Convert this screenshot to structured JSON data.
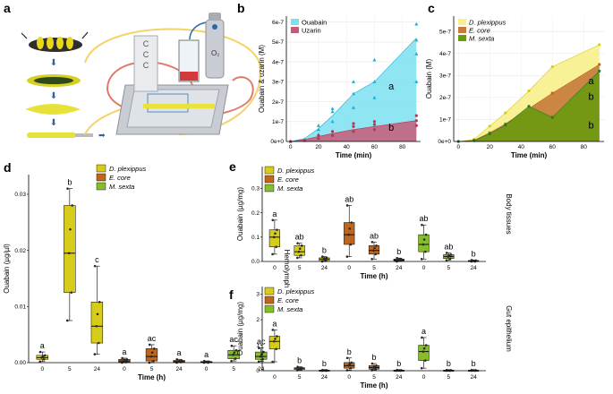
{
  "panels": {
    "a": "a",
    "b": "b",
    "c": "c",
    "d": "d",
    "e": "e",
    "f": "f"
  },
  "colors": {
    "dplex": "#d8cc1a",
    "ecore": "#c0661c",
    "msexta": "#86bd2b",
    "ouabain": "#7de0f0",
    "ouabain_pt": "#1ab0d8",
    "uzarin": "#c75a78",
    "uzarin_pt": "#b13a52",
    "yellow_area": "#f8f08a",
    "orange_area": "#c77a3a",
    "green_area": "#6a9a10"
  },
  "diagram": {
    "o2_label": "O₂"
  },
  "chart_data": [
    {
      "id": "b",
      "type": "area",
      "xlabel": "Time (min)",
      "ylabel": "Ouabain & uzarin (M)",
      "xticks": [
        "0",
        "20",
        "40",
        "60",
        "80"
      ],
      "xlim": [
        -3,
        93
      ],
      "yticks": [
        "0e+0",
        "1e-7",
        "2e-7",
        "3e-7",
        "4e-7",
        "5e-7",
        "6e-7"
      ],
      "ylim": [
        0,
        6.3e-07
      ],
      "legend": [
        "Ouabain",
        "Uzarin"
      ],
      "x": [
        0,
        10,
        20,
        30,
        45,
        60,
        90
      ],
      "series": [
        {
          "name": "Ouabain",
          "values": [
            0,
            1.5e-08,
            6.5e-08,
            1.3e-07,
            2.4e-07,
            3e-07,
            5.2e-07
          ],
          "points": [
            [
              0,
              0
            ],
            [
              10,
              5e-09
            ],
            [
              10,
              1e-08
            ],
            [
              20,
              3.5e-08
            ],
            [
              20,
              6e-08
            ],
            [
              20,
              8e-08
            ],
            [
              30,
              1e-07
            ],
            [
              30,
              1.5e-07
            ],
            [
              30,
              1.65e-07
            ],
            [
              45,
              1.7e-07
            ],
            [
              45,
              2.4e-07
            ],
            [
              45,
              3e-07
            ],
            [
              60,
              2.2e-07
            ],
            [
              60,
              3e-07
            ],
            [
              60,
              4.1e-07
            ],
            [
              90,
              3e-07
            ],
            [
              90,
              4.4e-07
            ],
            [
              90,
              5.1e-07
            ],
            [
              90,
              5.9e-07
            ]
          ]
        },
        {
          "name": "Uzarin",
          "values": [
            0,
            1e-08,
            2.5e-08,
            4e-08,
            6e-08,
            7.5e-08,
            1.05e-07
          ],
          "points": [
            [
              0,
              0
            ],
            [
              10,
              5e-09
            ],
            [
              20,
              1.5e-08
            ],
            [
              20,
              3e-08
            ],
            [
              30,
              3e-08
            ],
            [
              30,
              5e-08
            ],
            [
              45,
              5e-08
            ],
            [
              45,
              7.5e-08
            ],
            [
              45,
              9e-08
            ],
            [
              60,
              6e-08
            ],
            [
              60,
              8.5e-08
            ],
            [
              60,
              1e-07
            ],
            [
              90,
              8e-08
            ],
            [
              90,
              1.05e-07
            ],
            [
              90,
              1.3e-07
            ]
          ]
        }
      ],
      "annotations": [
        {
          "text": "a",
          "x": 70,
          "y": 2.6e-07
        },
        {
          "text": "b",
          "x": 70,
          "y": 5.5e-08
        }
      ]
    },
    {
      "id": "c",
      "type": "area",
      "xlabel": "Time (min)",
      "ylabel": "Ouabain (M)",
      "xticks": [
        "0",
        "20",
        "40",
        "60",
        "80"
      ],
      "xlim": [
        -3,
        93
      ],
      "yticks": [
        "0e+0",
        "1e-7",
        "2e-7",
        "3e-7",
        "4e-7",
        "5e-7"
      ],
      "ylim": [
        0,
        5.7e-07
      ],
      "legend": [
        "D. plexippus",
        "E. core",
        "M. sexta"
      ],
      "x": [
        0,
        10,
        20,
        30,
        45,
        60,
        90
      ],
      "series": [
        {
          "name": "D. plexippus",
          "values": [
            0,
            1e-08,
            7e-08,
            1.3e-07,
            2.3e-07,
            3.4e-07,
            4.4e-07
          ]
        },
        {
          "name": "E. core",
          "values": [
            0,
            5e-09,
            4e-08,
            8e-08,
            1.5e-07,
            2.2e-07,
            3.5e-07
          ]
        },
        {
          "name": "M. sexta",
          "values": [
            0,
            5e-09,
            3.5e-08,
            7.5e-08,
            1.6e-07,
            1.1e-07,
            3.2e-07
          ]
        }
      ],
      "annotations": [
        {
          "text": "a",
          "x": 83,
          "y": 2.6e-07
        },
        {
          "text": "b",
          "x": 83,
          "y": 1.9e-07
        },
        {
          "text": "b",
          "x": 83,
          "y": 6e-08
        }
      ]
    },
    {
      "id": "d",
      "type": "box",
      "xlabel": "Time (h)",
      "ylabel": "Ouabain (µg/µl)",
      "side_label": "Hemolymph",
      "ylim": [
        0,
        0.0335
      ],
      "yticks": [
        "0.00",
        "0.01",
        "0.02",
        "0.03"
      ],
      "legend": [
        "D. plexippus",
        "E. core",
        "M. sexta"
      ],
      "boxes": [
        {
          "group": "D. plexippus",
          "time": "0",
          "q1": 0.0006,
          "med": 0.0009,
          "q3": 0.0013,
          "lo": 0.0002,
          "hi": 0.0019,
          "sig": "a"
        },
        {
          "group": "D. plexippus",
          "time": "5",
          "q1": 0.0125,
          "med": 0.0195,
          "q3": 0.028,
          "lo": 0.0075,
          "hi": 0.031,
          "sig": "b"
        },
        {
          "group": "D. plexippus",
          "time": "24",
          "q1": 0.0035,
          "med": 0.0065,
          "q3": 0.0108,
          "lo": 0.0015,
          "hi": 0.0172,
          "sig": "c"
        },
        {
          "group": "E. core",
          "time": "0",
          "q1": 0.0001,
          "med": 0.0003,
          "q3": 0.0006,
          "lo": 0.0,
          "hi": 0.0008,
          "sig": "a"
        },
        {
          "group": "E. core",
          "time": "5",
          "q1": 0.0003,
          "med": 0.0011,
          "q3": 0.0025,
          "lo": 0.0,
          "hi": 0.0032,
          "sig": "ac"
        },
        {
          "group": "E. core",
          "time": "24",
          "q1": 0.0001,
          "med": 0.0002,
          "q3": 0.0004,
          "lo": 0.0,
          "hi": 0.0006,
          "sig": "a"
        },
        {
          "group": "M. sexta",
          "time": "0",
          "q1": 0.0,
          "med": 0.0001,
          "q3": 0.0002,
          "lo": 0.0,
          "hi": 0.0003,
          "sig": "a"
        },
        {
          "group": "M. sexta",
          "time": "5",
          "q1": 0.0007,
          "med": 0.0014,
          "q3": 0.0022,
          "lo": 0.0003,
          "hi": 0.003,
          "sig": "ac"
        },
        {
          "group": "M. sexta",
          "time": "24",
          "q1": 0.0006,
          "med": 0.0011,
          "q3": 0.0019,
          "lo": 0.0002,
          "hi": 0.0026,
          "sig": "ac"
        }
      ]
    },
    {
      "id": "e",
      "type": "box",
      "xlabel": "Time (h)",
      "ylabel": "Ouabain (µg/mg)",
      "side_label": "Body tissues",
      "ylim": [
        0,
        0.39
      ],
      "yticks": [
        "0.0",
        "0.1",
        "0.2",
        "0.3"
      ],
      "legend": [
        "D. plexippus",
        "E. core",
        "M. sexta"
      ],
      "boxes": [
        {
          "group": "D. plexippus",
          "time": "0",
          "q1": 0.06,
          "med": 0.1,
          "q3": 0.13,
          "lo": 0.03,
          "hi": 0.17,
          "sig": "a"
        },
        {
          "group": "D. plexippus",
          "time": "5",
          "q1": 0.025,
          "med": 0.04,
          "q3": 0.065,
          "lo": 0.015,
          "hi": 0.075,
          "sig": "ab"
        },
        {
          "group": "D. plexippus",
          "time": "24",
          "q1": 0.004,
          "med": 0.01,
          "q3": 0.015,
          "lo": 0.0,
          "hi": 0.02,
          "sig": "b"
        },
        {
          "group": "E. core",
          "time": "0",
          "q1": 0.07,
          "med": 0.11,
          "q3": 0.16,
          "lo": 0.02,
          "hi": 0.23,
          "sig": "ab"
        },
        {
          "group": "E. core",
          "time": "5",
          "q1": 0.03,
          "med": 0.045,
          "q3": 0.065,
          "lo": 0.01,
          "hi": 0.08,
          "sig": "ab"
        },
        {
          "group": "E. core",
          "time": "24",
          "q1": 0.003,
          "med": 0.006,
          "q3": 0.01,
          "lo": 0.0,
          "hi": 0.014,
          "sig": "b"
        },
        {
          "group": "M. sexta",
          "time": "0",
          "q1": 0.04,
          "med": 0.07,
          "q3": 0.11,
          "lo": 0.01,
          "hi": 0.15,
          "sig": "ab"
        },
        {
          "group": "M. sexta",
          "time": "5",
          "q1": 0.012,
          "med": 0.02,
          "q3": 0.028,
          "lo": 0.005,
          "hi": 0.035,
          "sig": "ab"
        },
        {
          "group": "M. sexta",
          "time": "24",
          "q1": 0.0,
          "med": 0.002,
          "q3": 0.004,
          "lo": 0.0,
          "hi": 0.006,
          "sig": "b"
        }
      ]
    },
    {
      "id": "f",
      "type": "box",
      "xlabel": "Time (h)",
      "ylabel": "Ouabain (µg/mg)",
      "side_label": "Gut epithelium",
      "ylim": [
        0,
        3.3
      ],
      "yticks": [
        "0",
        "1",
        "2",
        "3"
      ],
      "legend": [
        "D. plexippus",
        "E. core",
        "M. sexta"
      ],
      "boxes": [
        {
          "group": "D. plexippus",
          "time": "0",
          "q1": 0.85,
          "med": 1.15,
          "q3": 1.35,
          "lo": 0.35,
          "hi": 1.6,
          "sig": "a"
        },
        {
          "group": "D. plexippus",
          "time": "5",
          "q1": 0.05,
          "med": 0.08,
          "q3": 0.12,
          "lo": 0.02,
          "hi": 0.15,
          "sig": "b"
        },
        {
          "group": "D. plexippus",
          "time": "24",
          "q1": 0.0,
          "med": 0.01,
          "q3": 0.02,
          "lo": 0.0,
          "hi": 0.03,
          "sig": "b"
        },
        {
          "group": "E. core",
          "time": "0",
          "q1": 0.1,
          "med": 0.2,
          "q3": 0.32,
          "lo": 0.02,
          "hi": 0.5,
          "sig": "b"
        },
        {
          "group": "E. core",
          "time": "5",
          "q1": 0.06,
          "med": 0.12,
          "q3": 0.2,
          "lo": 0.02,
          "hi": 0.28,
          "sig": "b"
        },
        {
          "group": "E. core",
          "time": "24",
          "q1": 0.0,
          "med": 0.01,
          "q3": 0.02,
          "lo": 0.0,
          "hi": 0.03,
          "sig": "b"
        },
        {
          "group": "M. sexta",
          "time": "0",
          "q1": 0.4,
          "med": 0.75,
          "q3": 1.0,
          "lo": 0.1,
          "hi": 1.3,
          "sig": "a"
        },
        {
          "group": "M. sexta",
          "time": "5",
          "q1": 0.0,
          "med": 0.01,
          "q3": 0.02,
          "lo": 0.0,
          "hi": 0.03,
          "sig": "b"
        },
        {
          "group": "M. sexta",
          "time": "24",
          "q1": 0.0,
          "med": 0.01,
          "q3": 0.02,
          "lo": 0.0,
          "hi": 0.03,
          "sig": "b"
        }
      ]
    }
  ]
}
